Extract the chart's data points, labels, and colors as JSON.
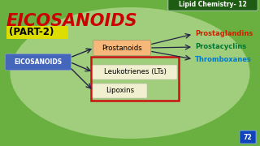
{
  "bg_color": "#6ab040",
  "title": "EICOSANOIDS",
  "subtitle": "(PART-2)",
  "title_color": "#cc0000",
  "subtitle_bg": "#dddd00",
  "header_label": "Lipid Chemistry- 12",
  "header_bg": "#1e5c14",
  "header_text_color": "#ffffff",
  "eicosanoids_label": "EICOSANOIDS",
  "eicosanoids_bg": "#4466bb",
  "eicosanoids_text_color": "#ffffff",
  "prostanoids_label": "Prostanoids",
  "prostanoids_bg": "#f5b87a",
  "leukotrienes_label": "Leukotrienes (LTs)",
  "leukotrienes_bg": "#f0f0d0",
  "lipoxins_label": "Lipoxins",
  "lipoxins_bg": "#f0f0d0",
  "red_box_color": "#cc1111",
  "prostaglandins_label": "Prostaglandins",
  "prostaglandins_color": "#cc2200",
  "prostacyclins_label": "Prostacyclins",
  "prostacyclins_color": "#007733",
  "thromboxanes_label": "Thromboxanes",
  "thromboxanes_color": "#007bcc",
  "arrow_color": "#222244"
}
